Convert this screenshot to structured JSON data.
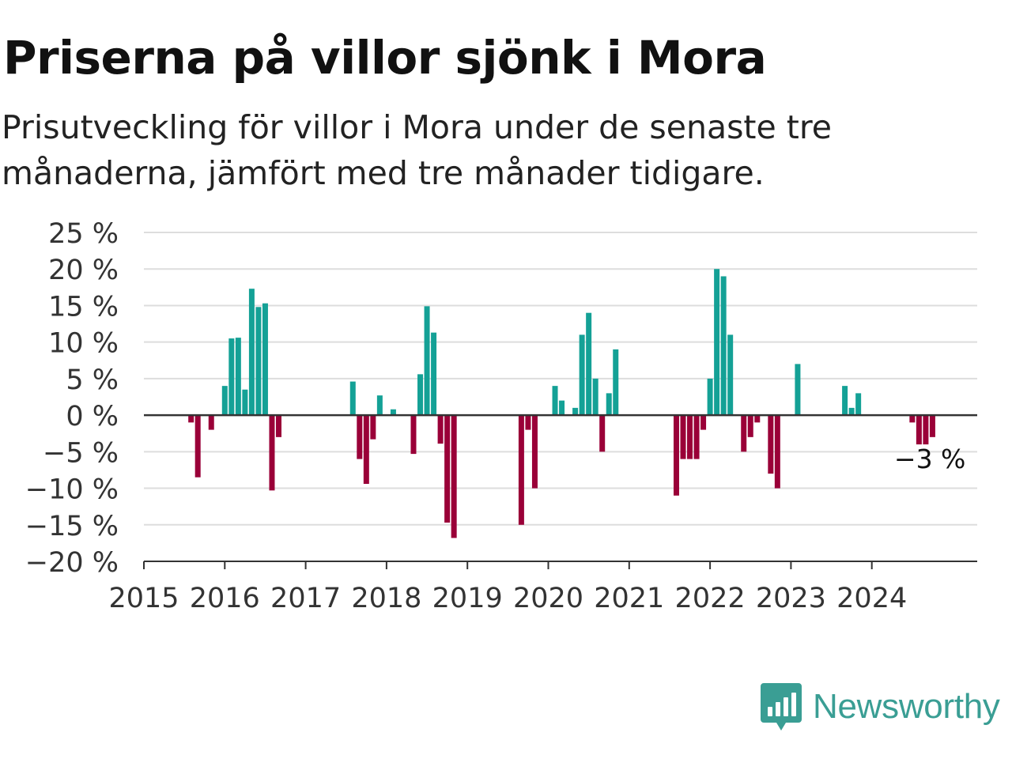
{
  "title": "Priserna på villor sjönk i Mora",
  "subtitle": "Prisutveckling för villor i Mora under de senaste tre månaderna, jämfört med tre månader tidigare.",
  "logo_text": "Newsworthy",
  "colors": {
    "positive": "#14a196",
    "negative": "#9a0038",
    "grid": "#dddddd",
    "axis": "#333333",
    "logo": "#3a9e94"
  },
  "chart_data": {
    "type": "bar",
    "ylim": [
      -20,
      25
    ],
    "y_ticks": [
      25,
      20,
      15,
      10,
      5,
      0,
      -5,
      -10,
      -15,
      -20
    ],
    "y_tick_labels": [
      "25 %",
      "20 %",
      "15 %",
      "10 %",
      "5 %",
      "0 %",
      "−5 %",
      "−10 %",
      "−15 %",
      "−20 %"
    ],
    "x_ticks": [
      "2015",
      "2016",
      "2017",
      "2018",
      "2019",
      "2020",
      "2021",
      "2022",
      "2023",
      "2024"
    ],
    "grid": true,
    "last_value_label": "−3 %",
    "series": [
      {
        "points": [
          {
            "date": "2015-08",
            "value": -1
          },
          {
            "date": "2015-09",
            "value": -8.5
          },
          {
            "date": "2015-11",
            "value": -2
          },
          {
            "date": "2016-01",
            "value": 4
          },
          {
            "date": "2016-02",
            "value": 10.5
          },
          {
            "date": "2016-03",
            "value": 10.6
          },
          {
            "date": "2016-04",
            "value": 3.5
          },
          {
            "date": "2016-05",
            "value": 17.3
          },
          {
            "date": "2016-06",
            "value": 14.8
          },
          {
            "date": "2016-07",
            "value": 15.3
          },
          {
            "date": "2016-08",
            "value": -10.3
          },
          {
            "date": "2016-09",
            "value": -3
          },
          {
            "date": "2017-08",
            "value": 4.6
          },
          {
            "date": "2017-09",
            "value": -6
          },
          {
            "date": "2017-10",
            "value": -9.4
          },
          {
            "date": "2017-11",
            "value": -3.3
          },
          {
            "date": "2017-12",
            "value": 2.7
          },
          {
            "date": "2018-02",
            "value": 0.8
          },
          {
            "date": "2018-05",
            "value": -5.3
          },
          {
            "date": "2018-06",
            "value": 5.6
          },
          {
            "date": "2018-07",
            "value": 14.9
          },
          {
            "date": "2018-08",
            "value": 11.3
          },
          {
            "date": "2018-09",
            "value": -3.9
          },
          {
            "date": "2018-10",
            "value": -14.7
          },
          {
            "date": "2018-11",
            "value": -16.8
          },
          {
            "date": "2019-09",
            "value": -15
          },
          {
            "date": "2019-10",
            "value": -2
          },
          {
            "date": "2019-11",
            "value": -10
          },
          {
            "date": "2020-02",
            "value": 4
          },
          {
            "date": "2020-03",
            "value": 2
          },
          {
            "date": "2020-05",
            "value": 1
          },
          {
            "date": "2020-06",
            "value": 11
          },
          {
            "date": "2020-07",
            "value": 14
          },
          {
            "date": "2020-08",
            "value": 5
          },
          {
            "date": "2020-09",
            "value": -5
          },
          {
            "date": "2020-10",
            "value": 3
          },
          {
            "date": "2020-11",
            "value": 9
          },
          {
            "date": "2021-08",
            "value": -11
          },
          {
            "date": "2021-09",
            "value": -6
          },
          {
            "date": "2021-10",
            "value": -6
          },
          {
            "date": "2021-11",
            "value": -6
          },
          {
            "date": "2021-12",
            "value": -2
          },
          {
            "date": "2022-01",
            "value": 5
          },
          {
            "date": "2022-02",
            "value": 20
          },
          {
            "date": "2022-03",
            "value": 19
          },
          {
            "date": "2022-04",
            "value": 11
          },
          {
            "date": "2022-06",
            "value": -5
          },
          {
            "date": "2022-07",
            "value": -3
          },
          {
            "date": "2022-08",
            "value": -1
          },
          {
            "date": "2022-10",
            "value": -8
          },
          {
            "date": "2022-11",
            "value": -10
          },
          {
            "date": "2023-02",
            "value": 7
          },
          {
            "date": "2023-09",
            "value": 4
          },
          {
            "date": "2023-10",
            "value": 1
          },
          {
            "date": "2023-11",
            "value": 3
          },
          {
            "date": "2024-07",
            "value": -1
          },
          {
            "date": "2024-08",
            "value": -4
          },
          {
            "date": "2024-09",
            "value": -4
          },
          {
            "date": "2024-10",
            "value": -3
          }
        ]
      }
    ]
  }
}
